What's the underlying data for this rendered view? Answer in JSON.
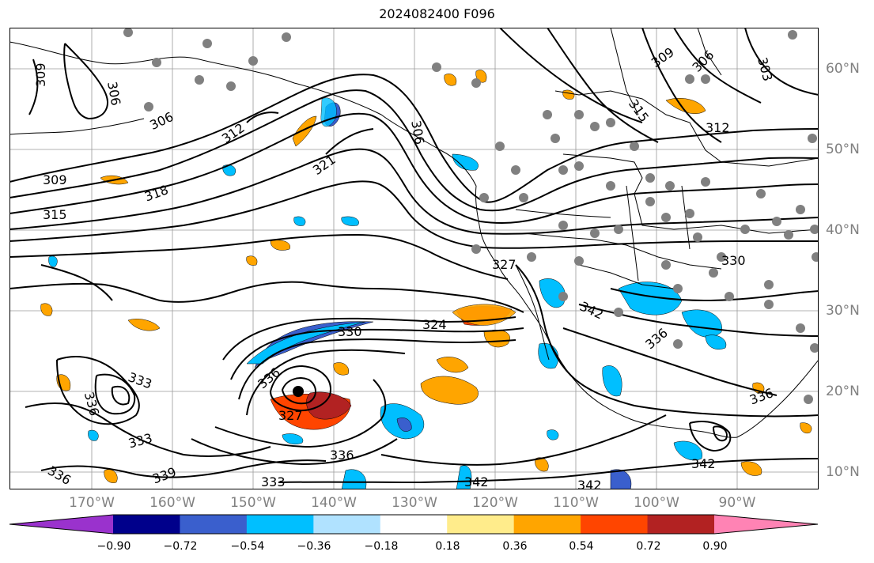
{
  "title": "2024082400 F096",
  "lon_labels": [
    "170°W",
    "160°W",
    "150°W",
    "140°W",
    "130°W",
    "120°W",
    "110°W",
    "100°W",
    "90°W"
  ],
  "lat_labels": [
    "60°N",
    "50°N",
    "40°N",
    "30°N",
    "20°N",
    "10°N"
  ],
  "contour_labels": [
    "309",
    "306",
    "306",
    "306",
    "312",
    "321",
    "318",
    "309",
    "315",
    "330",
    "336",
    "333",
    "327",
    "336",
    "333",
    "339",
    "336",
    "333",
    "336",
    "342",
    "342",
    "342",
    "324",
    "327",
    "336",
    "312",
    "309",
    "306",
    "303",
    "315",
    "330",
    "342",
    "336"
  ],
  "colorbar": {
    "tick_labels": [
      "−0.90",
      "−0.72",
      "−0.54",
      "−0.36",
      "−0.18",
      "0.18",
      "0.36",
      "0.54",
      "0.72",
      "0.90"
    ],
    "colors": [
      "#9a32cd",
      "#00008b",
      "#3a5fcd",
      "#00bfff",
      "#b0e2ff",
      "#ffffff",
      "#ffec8b",
      "#ffa500",
      "#ff4500",
      "#b22222",
      "#ff83b4"
    ]
  }
}
